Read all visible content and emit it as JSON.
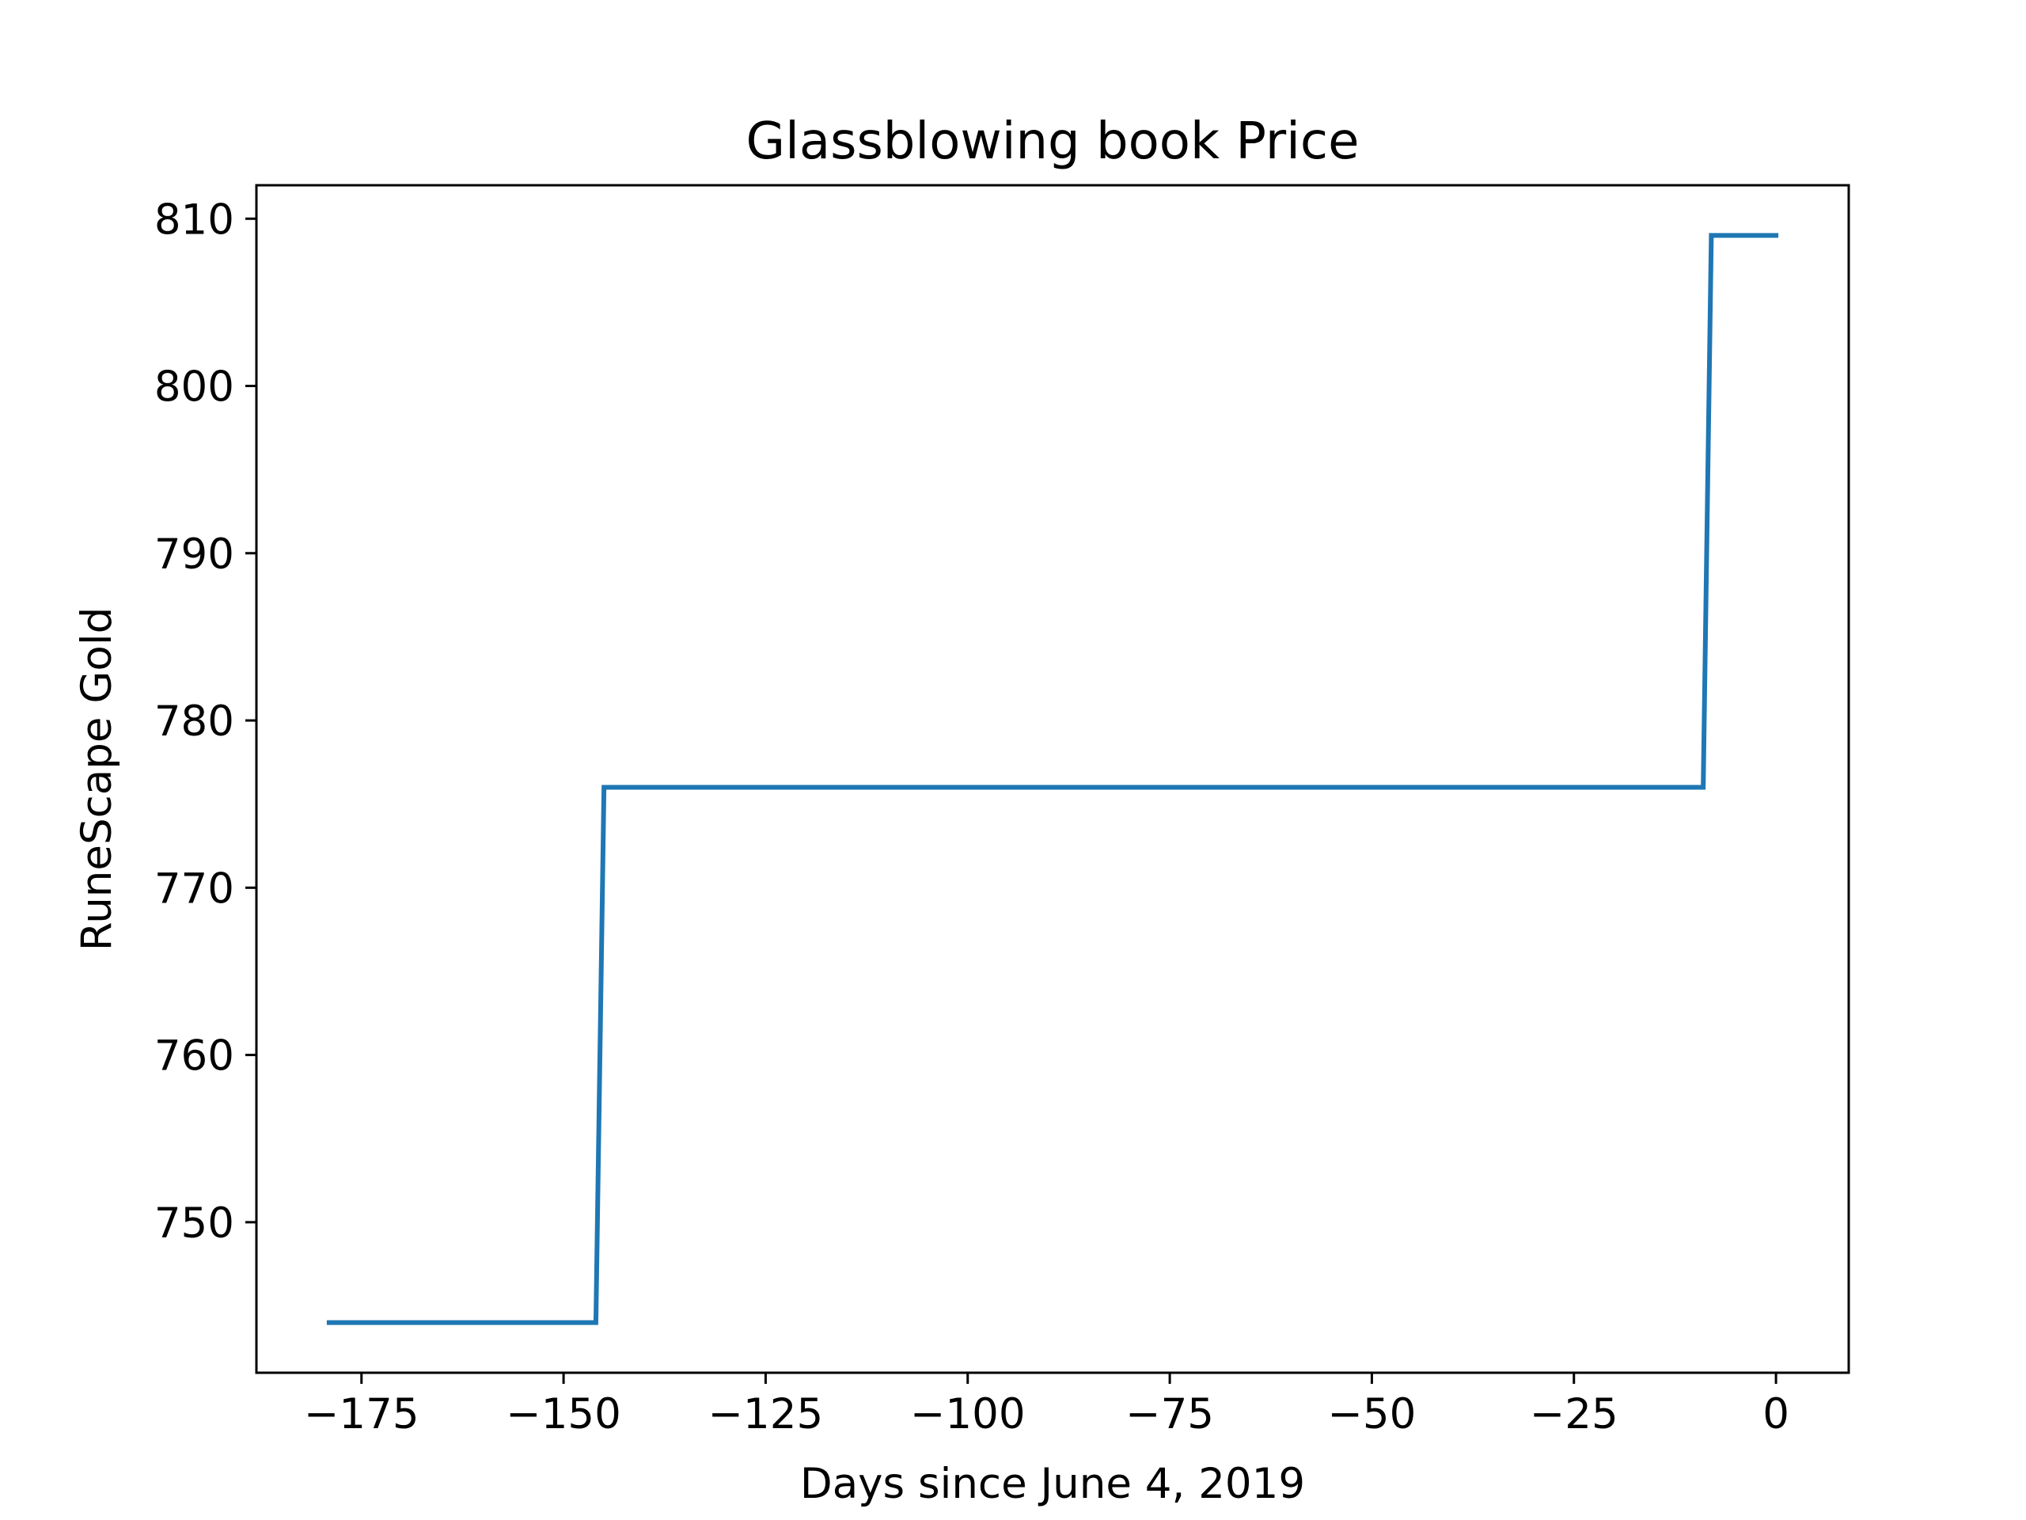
{
  "chart_data": {
    "type": "line",
    "title": "Glassblowing book Price",
    "xlabel": "Days since June 4, 2019",
    "ylabel": "RuneScape Gold",
    "xlim": [
      -188,
      9
    ],
    "ylim": [
      741,
      812
    ],
    "xticks": [
      -175,
      -150,
      -125,
      -100,
      -75,
      -50,
      -25,
      0
    ],
    "xtick_labels": [
      "−175",
      "−150",
      "−125",
      "−100",
      "−75",
      "−50",
      "−25",
      "0"
    ],
    "yticks": [
      750,
      760,
      770,
      780,
      790,
      800,
      810
    ],
    "ytick_labels": [
      "750",
      "760",
      "770",
      "780",
      "790",
      "800",
      "810"
    ],
    "grid": false,
    "series": [
      {
        "color": "#1f77b4",
        "x": [
          -179,
          -146,
          -145,
          -9,
          -8,
          0
        ],
        "y": [
          744,
          744,
          776,
          776,
          809,
          809
        ]
      }
    ]
  }
}
